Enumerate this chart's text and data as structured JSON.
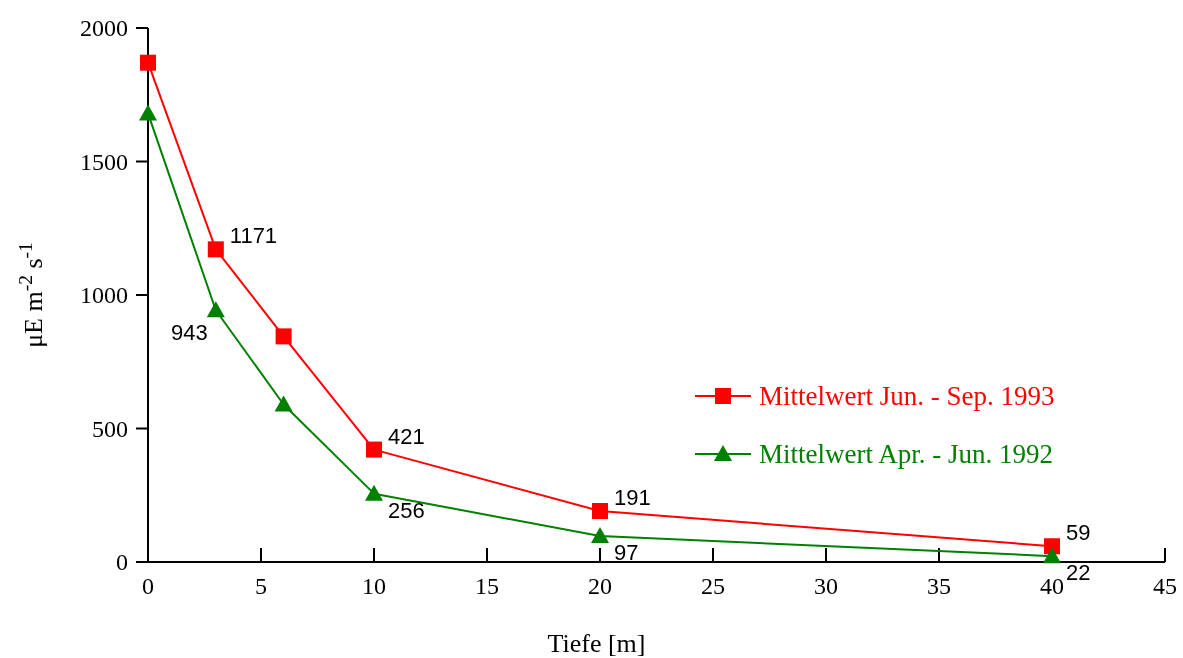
{
  "chart_data": {
    "type": "line",
    "xlabel": "Tiefe [m]",
    "ylabel": "μE m$^{-2}$ s$^{-1}$",
    "xlim": [
      0,
      45
    ],
    "xticks": [
      0,
      5,
      10,
      15,
      20,
      25,
      30,
      35,
      40,
      45
    ],
    "ylim": [
      0,
      2000
    ],
    "yticks": [
      0,
      500,
      1000,
      1500,
      2000
    ],
    "series": [
      {
        "name": "Mittelwert Jun. - Sep. 1993",
        "color": "#ff0000",
        "marker": "square",
        "x": [
          0,
          3,
          6,
          10,
          20,
          40
        ],
        "values": [
          1870,
          1171,
          845,
          421,
          191,
          59
        ],
        "value_labels": [
          null,
          "1171",
          null,
          "421",
          "191",
          "59"
        ]
      },
      {
        "name": "Mittelwert Apr. - Jun. 1992",
        "color": "#008000",
        "marker": "triangle",
        "x": [
          0,
          3,
          6,
          10,
          20,
          40
        ],
        "values": [
          1680,
          943,
          590,
          256,
          97,
          22
        ],
        "value_labels": [
          null,
          "943",
          null,
          "256",
          "97",
          "22"
        ]
      }
    ],
    "legend": "right",
    "grid": false
  }
}
